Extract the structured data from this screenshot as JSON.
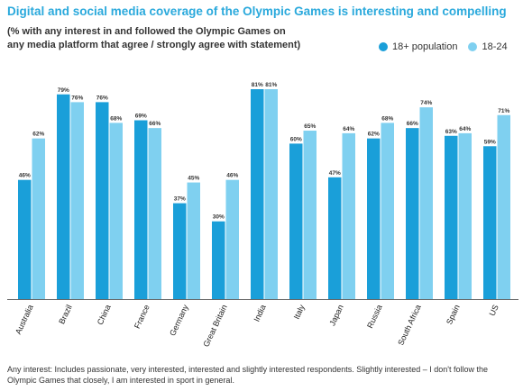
{
  "header": {
    "title": "Digital and social media coverage of the Olympic Games is interesting and compelling",
    "subtitle": "(% with any interest in and followed the Olympic Games on any media platform that agree / strongly agree with statement)"
  },
  "footnote": "Any interest: Includes passionate, very interested, interested and slightly interested respondents. Slightly interested – I don't follow the Olympic Games that closely, I am interested in sport in general.",
  "colors": {
    "series_1": "#1a9fd9",
    "series_2": "#7fd0f0"
  },
  "chart_data": {
    "type": "bar",
    "categories": [
      "Australia",
      "Brazil",
      "China",
      "France",
      "Germany",
      "Great Britain",
      "India",
      "Italy",
      "Japan",
      "Russia",
      "South Africa",
      "Spain",
      "US"
    ],
    "series": [
      {
        "name": "18+ population",
        "values": [
          46,
          79,
          76,
          69,
          37,
          30,
          81,
          60,
          47,
          62,
          66,
          63,
          59
        ],
        "labels": [
          "46%",
          "79%",
          "76%",
          "69%",
          "37%",
          "30%",
          "81%",
          "60%",
          "47%",
          "62%",
          "66%",
          "63%",
          "59%"
        ]
      },
      {
        "name": "18-24",
        "values": [
          62,
          76,
          68,
          66,
          45,
          46,
          81,
          65,
          64,
          68,
          74,
          64,
          71
        ],
        "labels": [
          "62%",
          "76%",
          "68%",
          "66%",
          "45%",
          "46%",
          "81%",
          "65%",
          "64%",
          "68%",
          "74%",
          "64%",
          "71%"
        ]
      }
    ],
    "ylim": [
      0,
      81
    ],
    "grid": false,
    "legend_position": "top-right"
  }
}
